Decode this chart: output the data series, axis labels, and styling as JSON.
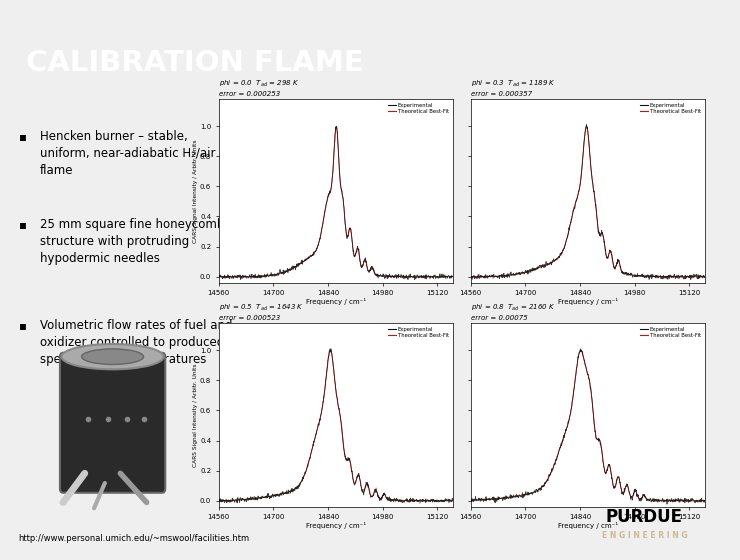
{
  "title": "CALIBRATION FLAME",
  "title_bg": "#D4A017",
  "title_fg": "#FFFFFF",
  "bg_color": "#EFEFEF",
  "black_bar_color": "#111111",
  "bullet_lines": [
    [
      "Hencken burner – stable,",
      "uniform, near-adiabatic H₂/air",
      "flame"
    ],
    [
      "25 mm square fine honeycomb",
      "structure with protruding",
      "hypodermic needles"
    ],
    [
      "Volumetric flow rates of fuel and",
      "oxidizer controlled to produced",
      "specific flame temperatures"
    ]
  ],
  "plots": [
    {
      "phi": 0.0,
      "T": 298,
      "error": "0.000253"
    },
    {
      "phi": 0.3,
      "T": 1189,
      "error": "0.000357"
    },
    {
      "phi": 0.5,
      "T": 1643,
      "error": "0.000523"
    },
    {
      "phi": 0.8,
      "T": 2160,
      "error": "0.00075"
    }
  ],
  "xrange": [
    14560,
    15160
  ],
  "xticks": [
    14560,
    14700,
    14840,
    14980,
    15120
  ],
  "yticks": [
    0,
    0.2,
    0.4,
    0.6,
    0.8,
    1.0
  ],
  "ylabel": "CARS Signal Intensity / Arbitr. Units",
  "xlabel": "Frequency / cm⁻¹",
  "footer": "http://www.personal.umich.edu/~mswool/facilities.htm",
  "purdue_gold": "#CFB991",
  "exp_color": "#111111",
  "theo_color": "#CC1111"
}
